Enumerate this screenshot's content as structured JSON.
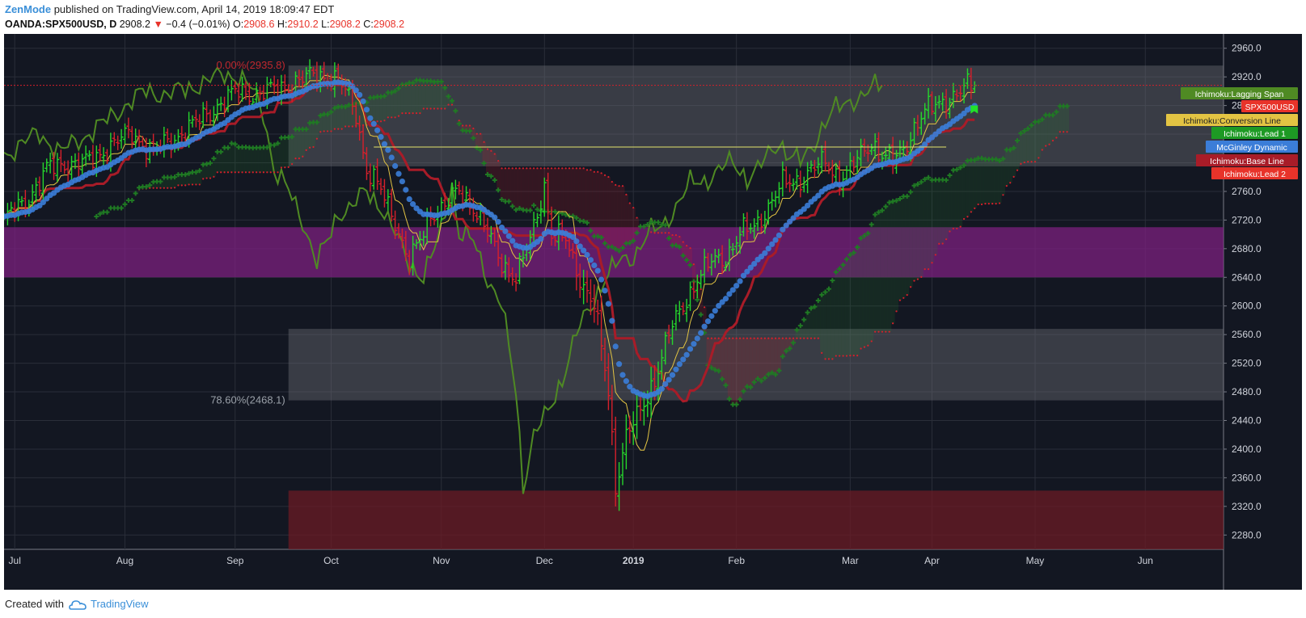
{
  "header": {
    "author": "ZenMode",
    "published": "published on TradingView.com, April 14, 2019 18:09:47 EDT",
    "symbol": "OANDA:SPX500USD, D",
    "price": "2908.2",
    "change": "−0.4 (−0.01%)",
    "o_label": "O:",
    "o_val": "2908.6",
    "h_label": "H:",
    "h_val": "2910.2",
    "l_label": "L:",
    "l_val": "2908.2",
    "c_label": "C:",
    "c_val": "2908.2"
  },
  "footer": {
    "created_with": "Created with",
    "brand": "TradingView"
  },
  "colors": {
    "background": "#131722",
    "up": "#26d62c",
    "down": "#d6202b",
    "mcginley": "#3b7dd8",
    "lagging": "#4f8a23",
    "conversion": "#e3c443",
    "base": "#a81c28",
    "lead1": "#2a8a2f",
    "lead2": "#d6202b",
    "purple_zone": "#6c1f6e",
    "red_zone": "#5a1a22",
    "gray_zone": "#5d6068"
  },
  "chart_data": {
    "type": "candlestick",
    "symbol": "OANDA:SPX500USD",
    "timeframe": "D",
    "ylim": [
      2260,
      2980
    ],
    "y_ticks": [
      2280,
      2320,
      2360,
      2400,
      2440,
      2480,
      2520,
      2560,
      2600,
      2640,
      2680,
      2720,
      2760,
      2800,
      2840,
      2880,
      2920,
      2960
    ],
    "y_tick_labels": [
      "2280.0",
      "2320.0",
      "2360.0",
      "2400.0",
      "2440.0",
      "2480.0",
      "2520.0",
      "2560.0",
      "2600.0",
      "2640.0",
      "2680.0",
      "2720.0",
      "2760.0",
      "2800.0",
      "2840.0",
      "2880.0",
      "2920.0",
      "2960.0"
    ],
    "x_labels": [
      {
        "label": "Jul",
        "day": 3
      },
      {
        "label": "Aug",
        "day": 34
      },
      {
        "label": "Sep",
        "day": 65
      },
      {
        "label": "Oct",
        "day": 92
      },
      {
        "label": "Nov",
        "day": 123
      },
      {
        "label": "Dec",
        "day": 152
      },
      {
        "label": "2019",
        "day": 177
      },
      {
        "label": "Feb",
        "day": 206
      },
      {
        "label": "Mar",
        "day": 238
      },
      {
        "label": "Apr",
        "day": 261
      },
      {
        "label": "May",
        "day": 290
      },
      {
        "label": "Jun",
        "day": 321
      }
    ],
    "x_domain": [
      0,
      343
    ],
    "last_day": 273,
    "price_anchors": [
      [
        0,
        2720
      ],
      [
        6,
        2745
      ],
      [
        12,
        2790
      ],
      [
        18,
        2800
      ],
      [
        24,
        2800
      ],
      [
        30,
        2825
      ],
      [
        36,
        2840
      ],
      [
        42,
        2815
      ],
      [
        48,
        2835
      ],
      [
        54,
        2855
      ],
      [
        60,
        2880
      ],
      [
        66,
        2900
      ],
      [
        72,
        2895
      ],
      [
        78,
        2905
      ],
      [
        84,
        2915
      ],
      [
        88,
        2925
      ],
      [
        92,
        2920
      ],
      [
        96,
        2900
      ],
      [
        99,
        2870
      ],
      [
        102,
        2790
      ],
      [
        106,
        2760
      ],
      [
        110,
        2720
      ],
      [
        114,
        2660
      ],
      [
        117,
        2690
      ],
      [
        120,
        2730
      ],
      [
        124,
        2740
      ],
      [
        128,
        2760
      ],
      [
        132,
        2740
      ],
      [
        136,
        2700
      ],
      [
        140,
        2660
      ],
      [
        144,
        2640
      ],
      [
        148,
        2690
      ],
      [
        152,
        2770
      ],
      [
        154,
        2700
      ],
      [
        158,
        2690
      ],
      [
        162,
        2640
      ],
      [
        166,
        2600
      ],
      [
        170,
        2480
      ],
      [
        172,
        2350
      ],
      [
        175,
        2420
      ],
      [
        179,
        2450
      ],
      [
        183,
        2500
      ],
      [
        187,
        2560
      ],
      [
        191,
        2600
      ],
      [
        195,
        2640
      ],
      [
        199,
        2660
      ],
      [
        203,
        2670
      ],
      [
        207,
        2700
      ],
      [
        211,
        2710
      ],
      [
        215,
        2740
      ],
      [
        219,
        2770
      ],
      [
        223,
        2775
      ],
      [
        227,
        2790
      ],
      [
        231,
        2800
      ],
      [
        235,
        2780
      ],
      [
        238,
        2790
      ],
      [
        241,
        2810
      ],
      [
        244,
        2830
      ],
      [
        247,
        2810
      ],
      [
        250,
        2800
      ],
      [
        253,
        2820
      ],
      [
        256,
        2850
      ],
      [
        259,
        2870
      ],
      [
        262,
        2880
      ],
      [
        265,
        2890
      ],
      [
        268,
        2895
      ],
      [
        271,
        2905
      ],
      [
        273,
        2908.2
      ]
    ],
    "series": [
      {
        "name": "Ichimoku:Lagging Span",
        "label_value": "2908.2",
        "color": "#4f8a23"
      },
      {
        "name": "SPX500USD",
        "label_value": "2908.2",
        "color": "#e8332a"
      },
      {
        "name": "Ichimoku:Conversion Line",
        "label_value": "2890.0",
        "color": "#e3c443"
      },
      {
        "name": "Ichimoku:Lead 1",
        "label_value": "2872.0",
        "color": "#1d9a24"
      },
      {
        "name": "McGinley Dynamic",
        "label_value": "2842.0",
        "color": "#3b7dd8"
      },
      {
        "name": "Ichimoku:Base Line",
        "label_value": "2823.0",
        "color": "#a81c28"
      },
      {
        "name": "Ichimoku:Lead 2",
        "label_value": "2797.0",
        "color": "#e8332a"
      }
    ],
    "zones": [
      {
        "y0": 2795,
        "y1": 2935.8,
        "day0": 80,
        "day1": 343,
        "color": "gray"
      },
      {
        "y0": 2640,
        "y1": 2710,
        "day0": 0,
        "day1": 343,
        "color": "purple"
      },
      {
        "y0": 2468.1,
        "y1": 2568,
        "day0": 80,
        "day1": 343,
        "color": "gray"
      },
      {
        "y0": 2260,
        "y1": 2342,
        "day0": 80,
        "day1": 343,
        "color": "red"
      }
    ],
    "fib_labels": [
      {
        "text": "0.00%(2935.8)",
        "y": 2935.8,
        "color": "#c0282e"
      },
      {
        "text": "78.60%(2468.1)",
        "y": 2468.1,
        "color": "#9aa0a8"
      }
    ],
    "hlines": [
      {
        "y": 2908.2,
        "color": "#d6202b",
        "style": "dotted"
      },
      {
        "y": 2822,
        "day0": 104,
        "day1": 265,
        "color": "#e3e36a",
        "style": "solid"
      }
    ]
  }
}
